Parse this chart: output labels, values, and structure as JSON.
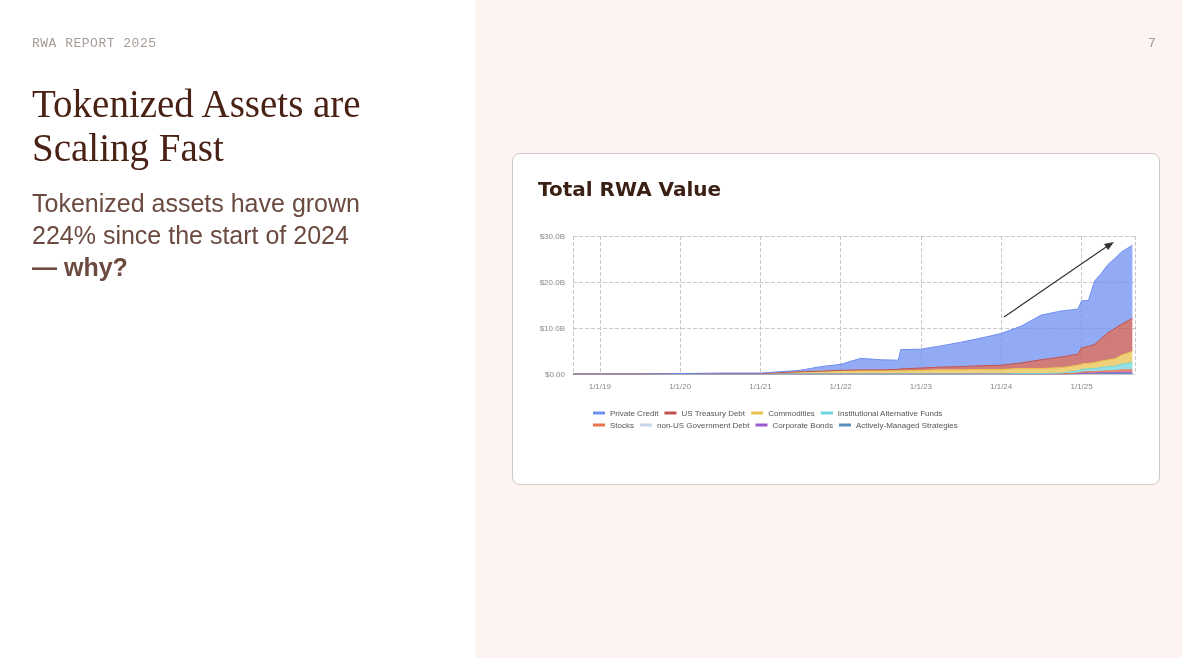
{
  "chart_data": {
    "type": "area",
    "stacked": true,
    "title": "Total RWA Value",
    "annotations": [
      "RWA REPORT 2025",
      "Tokenized Assets are Scaling Fast",
      "Tokenized assets have grown 224% since the start of 2024",
      "— why?",
      "7"
    ],
    "x": [
      "2018-09-01",
      "2019-01-01",
      "2019-07-01",
      "2020-01-01",
      "2020-07-01",
      "2021-01-01",
      "2021-04-01",
      "2021-07-01",
      "2021-10-01",
      "2022-01-01",
      "2022-04-01",
      "2022-07-01",
      "2022-09-20",
      "2022-10-01",
      "2023-01-01",
      "2023-04-01",
      "2023-07-01",
      "2023-10-01",
      "2024-01-01",
      "2024-04-01",
      "2024-07-01",
      "2024-10-01",
      "2024-12-15",
      "2025-01-01",
      "2025-02-01",
      "2025-03-01",
      "2025-04-01",
      "2025-05-01",
      "2025-06-01",
      "2025-07-01",
      "2025-08-20"
    ],
    "series": [
      {
        "name": "Actively-Managed Strategies",
        "color": "#5b8fc0",
        "values": [
          0,
          0,
          0,
          0,
          0,
          0,
          0,
          0,
          0,
          0,
          0,
          0,
          0,
          0,
          0,
          0,
          0,
          0,
          0,
          0,
          0,
          0,
          0,
          0.1,
          0.1,
          0.1,
          0.1,
          0.1,
          0.1,
          0.1,
          0.1
        ]
      },
      {
        "name": "Corporate Bonds",
        "color": "#9b59d0",
        "values": [
          0,
          0,
          0,
          0,
          0,
          0,
          0,
          0,
          0,
          0,
          0,
          0,
          0,
          0,
          0,
          0,
          0,
          0,
          0,
          0,
          0,
          0,
          0.1,
          0.1,
          0.1,
          0.1,
          0.2,
          0.2,
          0.2,
          0.3,
          0.3
        ]
      },
      {
        "name": "non-US Government Debt",
        "color": "#c8d4e8",
        "values": [
          null,
          null,
          null,
          null,
          null,
          null,
          null,
          null,
          null,
          null,
          null,
          null,
          null,
          null,
          null,
          null,
          null,
          null,
          null,
          null,
          null,
          null,
          null,
          null,
          null,
          null,
          null,
          null,
          null,
          null,
          null
        ]
      },
      {
        "name": "Stocks",
        "color": "#e8744a",
        "values": [
          0,
          0,
          0,
          0,
          0,
          0,
          0,
          0,
          0,
          0,
          0,
          0,
          0,
          0,
          0,
          0,
          0,
          0,
          0,
          0,
          0,
          0,
          0.1,
          0.2,
          0.3,
          0.3,
          0.3,
          0.4,
          0.4,
          0.5,
          0.5
        ]
      },
      {
        "name": "Institutional Alternative Funds",
        "color": "#6fd4dc",
        "values": [
          0,
          0,
          0,
          0,
          0,
          0,
          0,
          0,
          0,
          0,
          0,
          0,
          0,
          0,
          0,
          0,
          0,
          0,
          0,
          0.1,
          0.1,
          0.2,
          0.5,
          0.6,
          0.6,
          0.7,
          0.8,
          0.9,
          1.0,
          1.2,
          1.6
        ]
      },
      {
        "name": "Commodities",
        "color": "#e8c14d",
        "values": [
          0,
          0,
          0,
          0.1,
          0.1,
          0.1,
          0.3,
          0.5,
          0.6,
          0.7,
          0.7,
          0.7,
          0.7,
          0.7,
          0.8,
          0.9,
          0.9,
          1.0,
          1.0,
          1.1,
          1.1,
          1.2,
          1.2,
          1.2,
          1.2,
          1.3,
          1.4,
          1.5,
          1.6,
          2.0,
          2.4
        ]
      },
      {
        "name": "US Treasury Debt",
        "color": "#c0504d",
        "values": [
          0,
          0,
          0,
          0,
          0,
          0,
          0,
          0,
          0,
          0.1,
          0.2,
          0.2,
          0.3,
          0.4,
          0.5,
          0.6,
          0.7,
          0.8,
          0.9,
          1.2,
          1.9,
          2.3,
          2.4,
          3.5,
          3.7,
          3.9,
          4.9,
          5.9,
          6.6,
          6.7,
          7.2
        ]
      },
      {
        "name": "Private Credit",
        "color": "#6f8ff0",
        "values": [
          0,
          0,
          0,
          0,
          0.1,
          0.1,
          0.2,
          0.3,
          1.0,
          1.3,
          2.5,
          2.2,
          2.0,
          4.2,
          4.1,
          4.6,
          5.3,
          6.0,
          6.9,
          8.0,
          9.7,
          10.0,
          9.8,
          10.2,
          10.0,
          13.8,
          14.2,
          14.8,
          15.2,
          15.7,
          15.9
        ]
      }
    ],
    "xlim": [
      "2018-09-01",
      "2025-09-01"
    ],
    "xticks": [
      {
        "value": "2019-01-01",
        "label": "1/1/19"
      },
      {
        "value": "2020-01-01",
        "label": "1/1/20"
      },
      {
        "value": "2021-01-01",
        "label": "1/1/21"
      },
      {
        "value": "2022-01-01",
        "label": "1/1/22"
      },
      {
        "value": "2023-01-01",
        "label": "1/1/23"
      },
      {
        "value": "2024-01-01",
        "label": "1/1/24"
      },
      {
        "value": "2025-01-01",
        "label": "1/1/25"
      }
    ],
    "ylim": [
      0,
      30
    ],
    "yticks": [
      {
        "value": 0,
        "label": "$0.00"
      },
      {
        "value": 10,
        "label": "$10.0B"
      },
      {
        "value": 20,
        "label": "$20.0B"
      },
      {
        "value": 30,
        "label": "$30.0B"
      }
    ],
    "grid": true,
    "legend": "bottom",
    "marker": "none",
    "line_style": "solid"
  }
}
